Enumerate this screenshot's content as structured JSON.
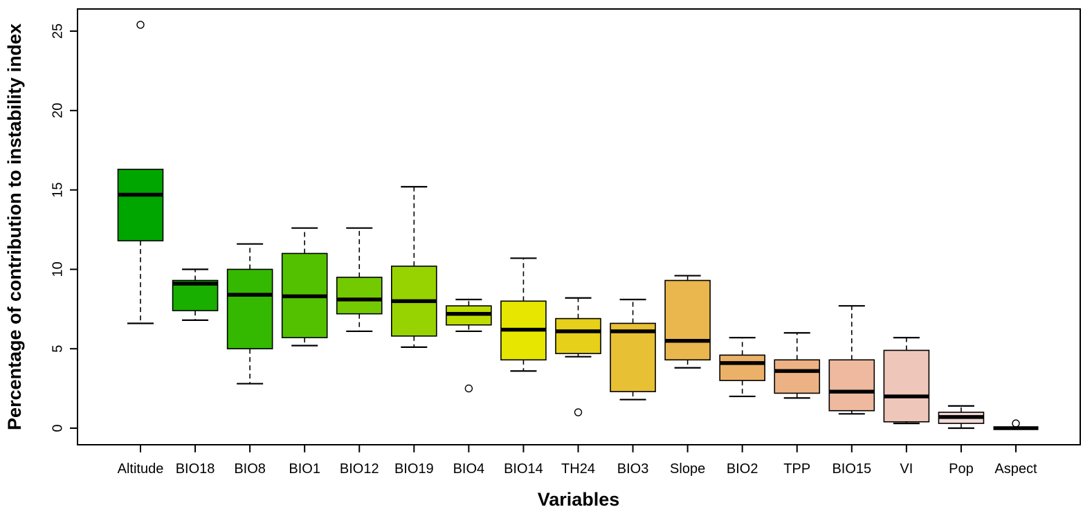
{
  "chart_data": {
    "type": "boxplot",
    "title": "",
    "xlabel": "Variables",
    "ylabel": "Percentage of contribution to instability index",
    "ylim": [
      0,
      25
    ],
    "yticks": [
      0,
      5,
      10,
      15,
      20,
      25
    ],
    "grid": false,
    "legend": "none",
    "categories": [
      "Altitude",
      "BIO18",
      "BIO8",
      "BIO1",
      "BIO12",
      "BIO19",
      "BIO4",
      "BIO14",
      "TH24",
      "BIO3",
      "Slope",
      "BIO2",
      "TPP",
      "BIO15",
      "VI",
      "Pop",
      "Aspect"
    ],
    "boxes": [
      {
        "label": "Altitude",
        "color": "#00A600",
        "min": 6.6,
        "q1": 11.8,
        "median": 14.7,
        "q3": 16.3,
        "max": 16.3,
        "outliers": [
          25.4
        ]
      },
      {
        "label": "BIO18",
        "color": "#19AF00",
        "min": 6.8,
        "q1": 7.4,
        "median": 9.1,
        "q3": 9.3,
        "max": 10.0,
        "outliers": []
      },
      {
        "label": "BIO8",
        "color": "#35B800",
        "min": 2.8,
        "q1": 5.0,
        "median": 8.4,
        "q3": 10.0,
        "max": 11.6,
        "outliers": []
      },
      {
        "label": "BIO1",
        "color": "#53C100",
        "min": 5.2,
        "q1": 5.7,
        "median": 8.3,
        "q3": 11.0,
        "max": 12.6,
        "outliers": []
      },
      {
        "label": "BIO12",
        "color": "#74CA00",
        "min": 6.1,
        "q1": 7.2,
        "median": 8.1,
        "q3": 9.5,
        "max": 12.6,
        "outliers": []
      },
      {
        "label": "BIO19",
        "color": "#97D300",
        "min": 5.1,
        "q1": 5.8,
        "median": 8.0,
        "q3": 10.2,
        "max": 15.2,
        "outliers": []
      },
      {
        "label": "BIO4",
        "color": "#BDDC00",
        "min": 6.1,
        "q1": 6.5,
        "median": 7.2,
        "q3": 7.7,
        "max": 8.1,
        "outliers": [
          2.5
        ]
      },
      {
        "label": "BIO14",
        "color": "#E6E600",
        "min": 3.6,
        "q1": 4.3,
        "median": 6.2,
        "q3": 8.0,
        "max": 10.7,
        "outliers": []
      },
      {
        "label": "TH24",
        "color": "#E7D01A",
        "min": 4.5,
        "q1": 4.7,
        "median": 6.1,
        "q3": 6.9,
        "max": 8.2,
        "outliers": [
          1.0
        ]
      },
      {
        "label": "BIO3",
        "color": "#E8C034",
        "min": 1.8,
        "q1": 2.3,
        "median": 6.1,
        "q3": 6.6,
        "max": 8.1,
        "outliers": []
      },
      {
        "label": "Slope",
        "color": "#EAB64E",
        "min": 3.8,
        "q1": 4.3,
        "median": 5.5,
        "q3": 9.3,
        "max": 9.6,
        "outliers": []
      },
      {
        "label": "BIO2",
        "color": "#EBB169",
        "min": 2.0,
        "q1": 3.0,
        "median": 4.1,
        "q3": 4.6,
        "max": 5.7,
        "outliers": []
      },
      {
        "label": "TPP",
        "color": "#EDB284",
        "min": 1.9,
        "q1": 2.2,
        "median": 3.6,
        "q3": 4.3,
        "max": 6.0,
        "outliers": []
      },
      {
        "label": "BIO15",
        "color": "#EEB99F",
        "min": 0.9,
        "q1": 1.1,
        "median": 2.3,
        "q3": 4.3,
        "max": 7.7,
        "outliers": []
      },
      {
        "label": "VI",
        "color": "#EFC6BA",
        "min": 0.3,
        "q1": 0.4,
        "median": 2.0,
        "q3": 4.9,
        "max": 5.7,
        "outliers": []
      },
      {
        "label": "Pop",
        "color": "#F1D9D6",
        "min": 0.0,
        "q1": 0.3,
        "median": 0.7,
        "q3": 1.0,
        "max": 1.4,
        "outliers": []
      },
      {
        "label": "Aspect",
        "color": "#F2F2F2",
        "min": 0.0,
        "q1": 0.0,
        "median": 0.0,
        "q3": 0.0,
        "max": 0.0,
        "outliers": [
          0.3
        ]
      }
    ],
    "colors": {
      "box_border": "#000000",
      "median_line": "#000000",
      "whisker": "#000000",
      "outlier_stroke": "#000000",
      "background": "#FFFFFF"
    }
  }
}
